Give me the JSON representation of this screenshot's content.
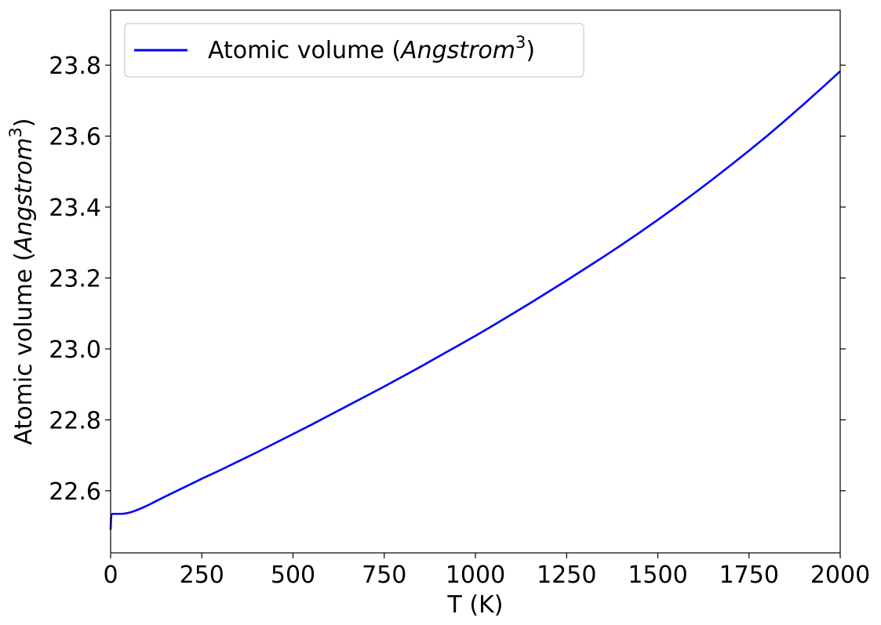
{
  "chart_data": {
    "type": "line",
    "title": "",
    "xlabel": "T (K)",
    "ylabel": {
      "prefix": "Atomic volume (",
      "italic": "Angstrom",
      "superscript": "3",
      "suffix": ")"
    },
    "xlim": [
      0,
      2000
    ],
    "ylim": [
      22.425,
      23.955
    ],
    "xticks": [
      0,
      250,
      500,
      750,
      1000,
      1250,
      1500,
      1750,
      2000
    ],
    "xtick_labels": [
      "0",
      "250",
      "500",
      "750",
      "1000",
      "1250",
      "1500",
      "1750",
      "2000"
    ],
    "yticks": [
      22.6,
      22.8,
      23.0,
      23.2,
      23.4,
      23.6,
      23.8
    ],
    "ytick_labels": [
      "22.6",
      "22.8",
      "23.0",
      "23.2",
      "23.4",
      "23.6",
      "23.8"
    ],
    "grid": false,
    "legend": {
      "placement": "top-left",
      "entries": [
        {
          "prefix": "Atomic volume (",
          "italic": "Angstrom",
          "superscript": "3",
          "suffix": ")",
          "color": "#0000ff"
        }
      ]
    },
    "series": [
      {
        "color": "#0000ff",
        "x": [
          0,
          1,
          2,
          5,
          10,
          20,
          30,
          40,
          50,
          60,
          70,
          80,
          100,
          125,
          150,
          200,
          250,
          300,
          350,
          400,
          450,
          500,
          550,
          600,
          650,
          700,
          750,
          800,
          850,
          900,
          950,
          1000,
          1050,
          1100,
          1150,
          1200,
          1250,
          1300,
          1350,
          1400,
          1450,
          1500,
          1550,
          1600,
          1650,
          1700,
          1750,
          1800,
          1850,
          1900,
          1950,
          2000
        ],
        "y": [
          22.49,
          22.52,
          22.533,
          22.535,
          22.535,
          22.535,
          22.535,
          22.536,
          22.538,
          22.541,
          22.545,
          22.549,
          22.558,
          22.571,
          22.584,
          22.609,
          22.634,
          22.658,
          22.683,
          22.708,
          22.734,
          22.76,
          22.786,
          22.813,
          22.84,
          22.867,
          22.894,
          22.922,
          22.95,
          22.979,
          23.008,
          23.037,
          23.067,
          23.098,
          23.129,
          23.161,
          23.193,
          23.226,
          23.259,
          23.293,
          23.328,
          23.364,
          23.401,
          23.439,
          23.478,
          23.518,
          23.559,
          23.601,
          23.645,
          23.69,
          23.736,
          23.783
        ]
      }
    ]
  }
}
